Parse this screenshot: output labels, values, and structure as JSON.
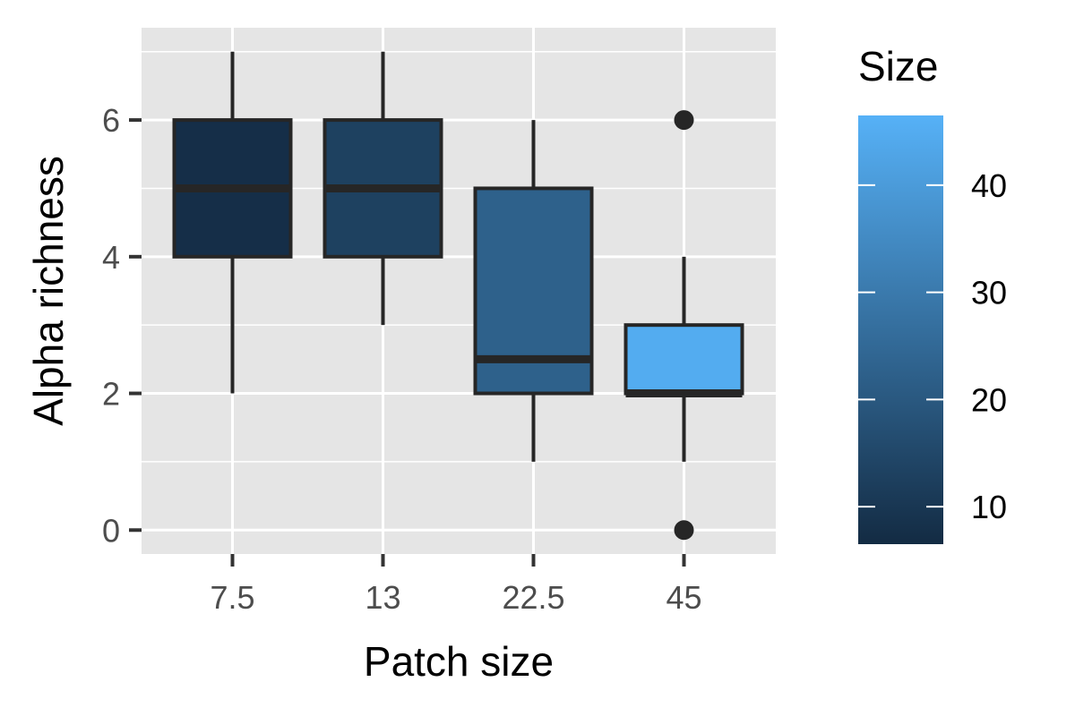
{
  "chart_data": {
    "type": "boxplot",
    "xlabel": "Patch size",
    "ylabel": "Alpha richness",
    "categories": [
      "7.5",
      "13",
      "22.5",
      "45"
    ],
    "x_numeric": [
      7.5,
      13,
      22.5,
      45
    ],
    "boxes": [
      {
        "category": "7.5",
        "size": 7.5,
        "lower_whisker": 2,
        "q1": 4,
        "median": 5,
        "q3": 6,
        "upper_whisker": 7,
        "outliers": []
      },
      {
        "category": "13",
        "size": 13,
        "lower_whisker": 3,
        "q1": 4,
        "median": 5,
        "q3": 6,
        "upper_whisker": 7,
        "outliers": []
      },
      {
        "category": "22.5",
        "size": 22.5,
        "lower_whisker": 1,
        "q1": 2,
        "median": 2.5,
        "q3": 5,
        "upper_whisker": 6,
        "outliers": []
      },
      {
        "category": "45",
        "size": 45,
        "lower_whisker": 1,
        "q1": 2,
        "median": 2,
        "q3": 3,
        "upper_whisker": 4,
        "outliers": [
          6,
          0
        ]
      }
    ],
    "ylim": [
      -0.35,
      7.35
    ],
    "y_ticks": [
      0,
      2,
      4,
      6
    ],
    "y_tick_labels": [
      "0",
      "2",
      "4",
      "6"
    ],
    "y_minor_gridlines": [
      1,
      3,
      5,
      7
    ],
    "grid": true,
    "legend": {
      "title": "Size",
      "type": "colorbar",
      "position": "right",
      "range": [
        6.5,
        46.5
      ],
      "ticks": [
        10,
        20,
        30,
        40
      ],
      "tick_labels": [
        "10",
        "20",
        "30",
        "40"
      ],
      "low_color": "#132B43",
      "high_color": "#56B1F7"
    },
    "colors": {
      "panel_background": "#e5e5e5",
      "grid": "#ffffff",
      "box_outline": "#262626",
      "tick_text": "#4d4d4d"
    }
  }
}
